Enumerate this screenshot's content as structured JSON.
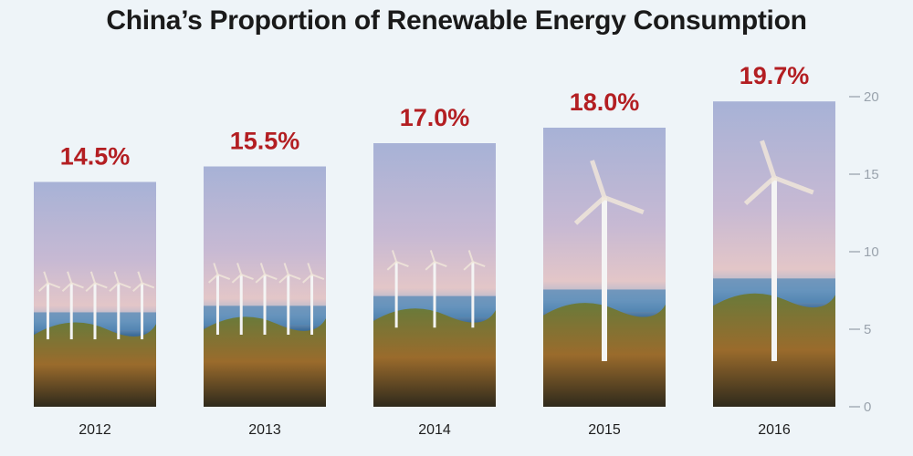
{
  "chart_data": {
    "type": "bar",
    "title": "China’s Proportion of Renewable Energy Consumption",
    "categories": [
      "2012",
      "2013",
      "2014",
      "2015",
      "2016"
    ],
    "values": [
      14.5,
      15.5,
      17.0,
      18.0,
      19.7
    ],
    "value_labels": [
      "14.5%",
      "15.5%",
      "17.0%",
      "18.0%",
      "19.7%"
    ],
    "xlabel": "",
    "ylabel": "",
    "ylim": [
      0,
      20
    ],
    "yticks": [
      0,
      5,
      10,
      15,
      20
    ],
    "axis_position": "right",
    "grid": false,
    "bar_fill": "photo-wind-turbines",
    "colors": {
      "value_label": "#b31e22",
      "tick": "#9aa3ad",
      "background": "#eef4f8"
    }
  }
}
